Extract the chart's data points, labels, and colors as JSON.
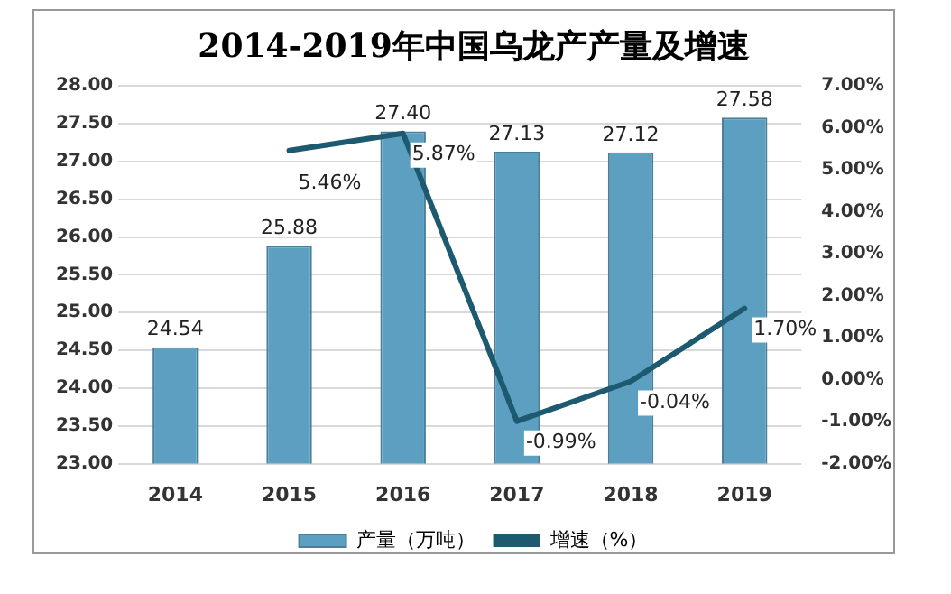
{
  "chart_data": {
    "type": "bar",
    "title": "2014-2019年中国乌龙产产量及增速",
    "categories": [
      "2014",
      "2015",
      "2016",
      "2017",
      "2018",
      "2019"
    ],
    "series": [
      {
        "name": "产量（万吨）",
        "color": "#5c9fc0",
        "values": [
          24.54,
          25.88,
          27.4,
          27.13,
          27.12,
          27.58
        ],
        "value_labels": [
          "24.54",
          "25.88",
          "27.40",
          "27.13",
          "27.12",
          "27.58"
        ]
      },
      {
        "name": "增速（%）",
        "type": "line",
        "axis": "y2",
        "color": "#1d5a70",
        "values": [
          null,
          5.46,
          5.87,
          -0.99,
          -0.04,
          1.7
        ],
        "value_labels": [
          null,
          "5.46%",
          "5.87%",
          "-0.99%",
          "-0.04%",
          "1.70%"
        ]
      }
    ],
    "ylim": [
      23,
      28
    ],
    "yticks": [
      {
        "value": 23,
        "label": "23.00"
      },
      {
        "value": 23.5,
        "label": "23.50"
      },
      {
        "value": 24,
        "label": "24.00"
      },
      {
        "value": 24.5,
        "label": "24.50"
      },
      {
        "value": 25,
        "label": "25.00"
      },
      {
        "value": 25.5,
        "label": "25.50"
      },
      {
        "value": 26,
        "label": "26.00"
      },
      {
        "value": 26.5,
        "label": "26.50"
      },
      {
        "value": 27,
        "label": "27.00"
      },
      {
        "value": 27.5,
        "label": "27.50"
      },
      {
        "value": 28,
        "label": "28.00"
      }
    ],
    "y2lim": [
      -2,
      7
    ],
    "y2ticks": [
      {
        "value": -2,
        "label": "-2.00%"
      },
      {
        "value": -1,
        "label": "-1.00%"
      },
      {
        "value": 0,
        "label": "0.00%"
      },
      {
        "value": 1,
        "label": "1.00%"
      },
      {
        "value": 2,
        "label": "2.00%"
      },
      {
        "value": 3,
        "label": "3.00%"
      },
      {
        "value": 4,
        "label": "4.00%"
      },
      {
        "value": 5,
        "label": "5.00%"
      },
      {
        "value": 6,
        "label": "6.00%"
      },
      {
        "value": 7,
        "label": "7.00%"
      }
    ],
    "grid": "y",
    "legend": "bottom",
    "marker": "none",
    "line_style": "solid"
  }
}
